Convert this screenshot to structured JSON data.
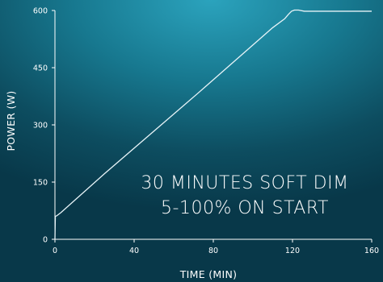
{
  "chart_data": {
    "type": "line",
    "xlabel": "TIME (MIN)",
    "ylabel": "POWER (W)",
    "xlim": [
      0,
      160
    ],
    "ylim": [
      0,
      600
    ],
    "x_ticks": [
      0,
      40,
      80,
      120,
      160
    ],
    "y_ticks": [
      0,
      150,
      300,
      450,
      600
    ],
    "grid": false,
    "annotations": [
      "30 MINUTES SOFT DIM",
      "5-100% ON START"
    ],
    "series": [
      {
        "x": [
          0,
          0.2,
          1,
          3,
          25,
          72,
          110,
          116,
          118,
          119.5,
          121,
          123,
          126,
          160
        ],
        "y": [
          0,
          60,
          62,
          70,
          172,
          382,
          555,
          578,
          590,
          598,
          601,
          601,
          598,
          598
        ]
      }
    ]
  },
  "colors": {
    "line": "#e8f4f8",
    "axis": "#ffffff",
    "text": "#ffffff"
  }
}
